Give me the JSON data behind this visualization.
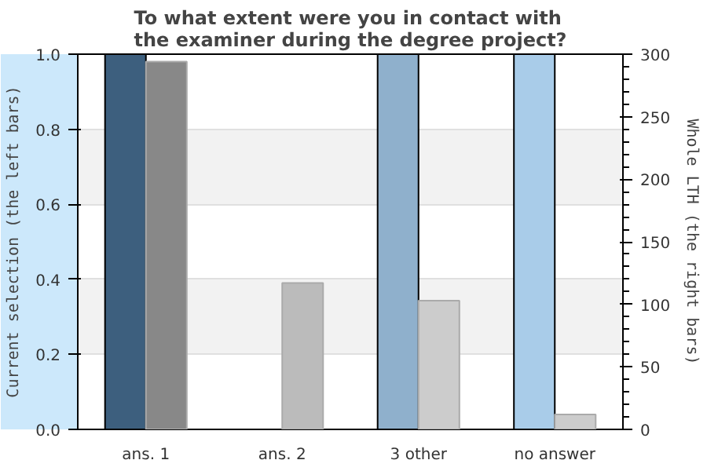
{
  "chart_data": {
    "type": "bar",
    "title": "To what extent were you in contact with\nthe examiner during the degree project?",
    "categories": [
      "ans. 1",
      "ans. 2",
      "3 other",
      "no answer"
    ],
    "ylabel": "Current selection (the left bars)",
    "y2label": "Whole LTH (the right bars)",
    "ylim": [
      0,
      1
    ],
    "yticks": [
      {
        "value": 0,
        "label": "0.0"
      },
      0.2,
      0.4,
      0.6,
      0.8,
      {
        "value": 1,
        "label": "1.0"
      }
    ],
    "y2lim": [
      0,
      300
    ],
    "y2ticks": [
      0,
      50,
      100,
      150,
      200,
      250,
      300
    ],
    "grid": "y",
    "series": [
      {
        "values": [
          1,
          null,
          1,
          1
        ],
        "colors": [
          "#3d5f7e",
          null,
          "#8fb0cc",
          "#a9cce9"
        ]
      },
      {
        "values": [
          294,
          117,
          103,
          12
        ],
        "colors": [
          "#888888",
          "#bbbbbb",
          "#cccccc",
          "#cccccc"
        ],
        "axis": "y2"
      }
    ]
  }
}
